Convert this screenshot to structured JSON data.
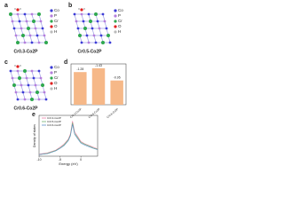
{
  "panels": [
    {
      "label": "a",
      "caption": "Cr0.3-Co2P",
      "legend": [
        "Co",
        "P",
        "Cr",
        "O",
        "H"
      ]
    },
    {
      "label": "b",
      "caption": "Cr0.5-Co2P",
      "legend": [
        "Co",
        "P",
        "Cr",
        "O",
        "H"
      ]
    },
    {
      "label": "c",
      "caption": "Cr0.6-Co2P",
      "legend": [
        "Co",
        "P",
        "Cr",
        "O",
        "H"
      ]
    }
  ],
  "chart_data": [
    {
      "type": "bar",
      "panel_label": "d",
      "categories": [
        "Cr0.3-Co2P",
        "Cr0.5-Co2P",
        "Cr0.6-Co2P"
      ],
      "values": [
        -1.28,
        -1.43,
        -0.95
      ],
      "value_labels": [
        "-1.28",
        "-1.43",
        "-0.95"
      ],
      "color": "#f6b888",
      "ylim": [
        0,
        -1.6
      ]
    },
    {
      "type": "line",
      "panel_label": "e",
      "x_label": "Energy (eV)",
      "y_label": "Density of states",
      "x": [
        -10,
        -8,
        -6,
        -5,
        -4,
        -3,
        -2.5,
        -2,
        -1.5,
        -1,
        0,
        1,
        2,
        3,
        4
      ],
      "series": [
        {
          "name": "Cr0.3-Co2P",
          "color": "#e87fa8",
          "values": [
            0.5,
            0.8,
            1.5,
            2.2,
            3.0,
            4.2,
            5.5,
            8.6,
            6.0,
            5.2,
            3.6,
            3.0,
            2.6,
            2.2,
            1.8
          ]
        },
        {
          "name": "Cr0.5-Co2P",
          "color": "#6fb36f",
          "values": [
            0.4,
            0.7,
            1.4,
            2.0,
            2.8,
            4.0,
            5.2,
            8.2,
            5.6,
            4.9,
            3.4,
            2.9,
            2.5,
            2.0,
            1.7
          ]
        },
        {
          "name": "Cr0.6-Co2P",
          "color": "#5a8fc8",
          "values": [
            0.4,
            0.6,
            1.3,
            1.9,
            2.6,
            3.8,
            5.0,
            7.8,
            5.4,
            4.6,
            3.2,
            2.7,
            2.3,
            1.9,
            1.6
          ]
        }
      ],
      "xlim": [
        -10,
        4
      ],
      "xticks": [
        -10,
        -5,
        0
      ],
      "ylim": [
        0,
        10
      ]
    }
  ]
}
